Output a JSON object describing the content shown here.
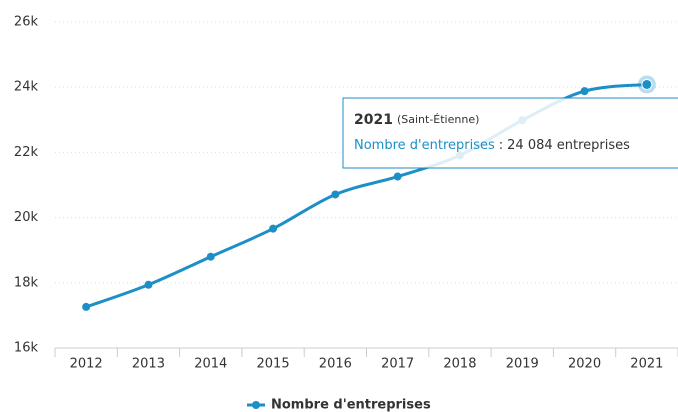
{
  "chart_data": {
    "type": "line",
    "categories": [
      "2012",
      "2013",
      "2014",
      "2015",
      "2016",
      "2017",
      "2018",
      "2019",
      "2020",
      "2021"
    ],
    "series": [
      {
        "name": "Nombre d'entreprises",
        "color": "#1b8fc6",
        "values": [
          17260,
          17940,
          18800,
          19660,
          20710,
          21260,
          21910,
          22985,
          23880,
          24084
        ],
        "value_labels": [
          null,
          null,
          null,
          null,
          null,
          null,
          null,
          null,
          null,
          "24 084 entreprises"
        ]
      }
    ],
    "ylim": [
      16000,
      26000
    ],
    "yticks": [
      {
        "value": 16000,
        "label": "16k"
      },
      {
        "value": 18000,
        "label": "18k"
      },
      {
        "value": 20000,
        "label": "20k"
      },
      {
        "value": 22000,
        "label": "22k"
      },
      {
        "value": 24000,
        "label": "24k"
      },
      {
        "value": 26000,
        "label": "26k"
      }
    ],
    "grid": true,
    "tooltip_location": "(Saint-Étienne)",
    "tooltip_separator": ":"
  }
}
